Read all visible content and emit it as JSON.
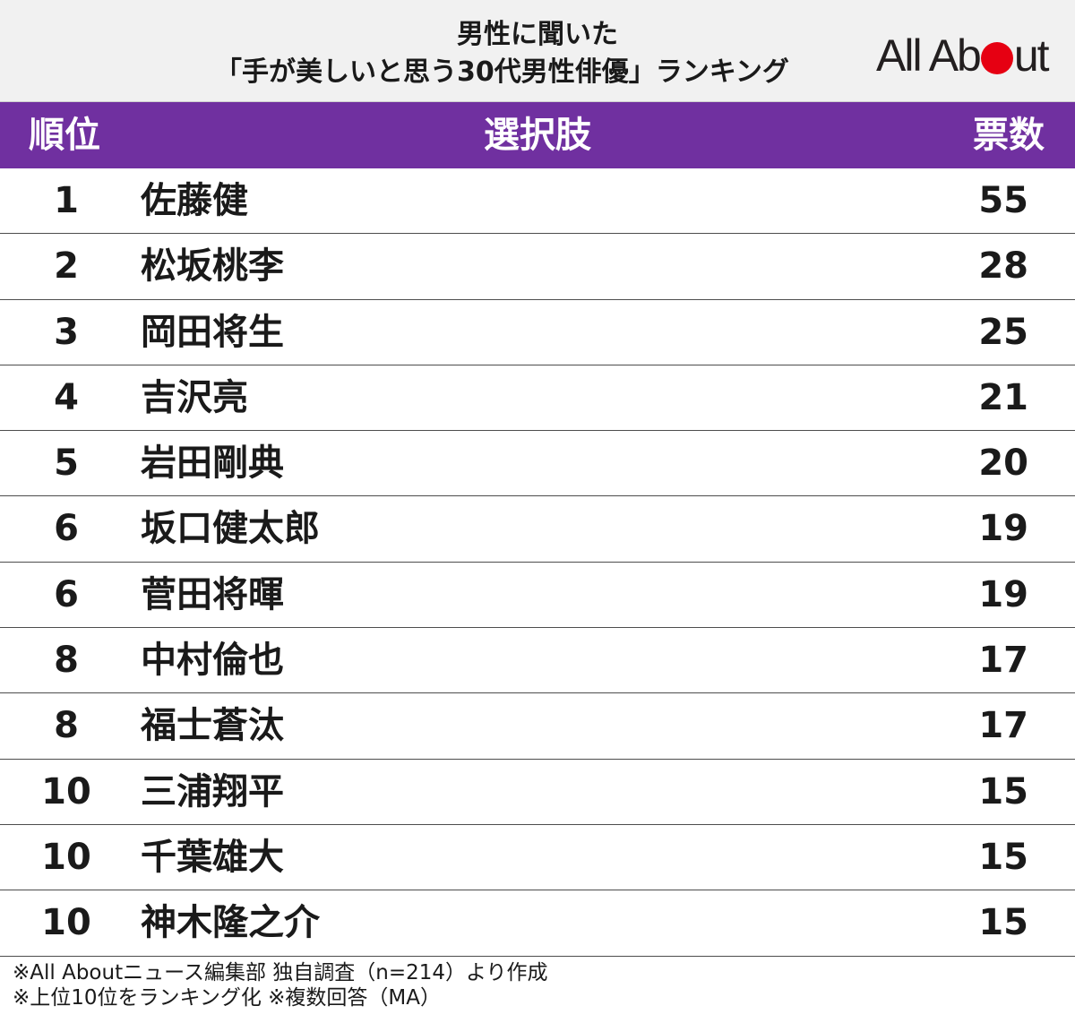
{
  "header": {
    "title_line1": "男性に聞いた",
    "title_line2": "「手が美しいと思う30代男性俳優」ランキング",
    "logo_text_a": "All Ab",
    "logo_text_b": "ut",
    "logo_dot_color": "#e60012"
  },
  "colors": {
    "header_bg": "#f1f1f1",
    "table_header_bg": "#7030a0",
    "table_header_text": "#ffffff"
  },
  "chart_data": {
    "type": "table",
    "columns": [
      "順位",
      "選択肢",
      "票数"
    ],
    "rows": [
      {
        "rank": "1",
        "name": "佐藤健",
        "votes": "55"
      },
      {
        "rank": "2",
        "name": "松坂桃李",
        "votes": "28"
      },
      {
        "rank": "3",
        "name": "岡田将生",
        "votes": "25"
      },
      {
        "rank": "4",
        "name": "吉沢亮",
        "votes": "21"
      },
      {
        "rank": "5",
        "name": "岩田剛典",
        "votes": "20"
      },
      {
        "rank": "6",
        "name": "坂口健太郎",
        "votes": "19"
      },
      {
        "rank": "6",
        "name": "菅田将暉",
        "votes": "19"
      },
      {
        "rank": "8",
        "name": "中村倫也",
        "votes": "17"
      },
      {
        "rank": "8",
        "name": "福士蒼汰",
        "votes": "17"
      },
      {
        "rank": "10",
        "name": "三浦翔平",
        "votes": "15"
      },
      {
        "rank": "10",
        "name": "千葉雄大",
        "votes": "15"
      },
      {
        "rank": "10",
        "name": "神木隆之介",
        "votes": "15"
      }
    ]
  },
  "notes": {
    "line1": "※All Aboutニュース編集部 独自調査（n=214）より作成",
    "line2": "※上位10位をランキング化 ※複数回答（MA）"
  }
}
